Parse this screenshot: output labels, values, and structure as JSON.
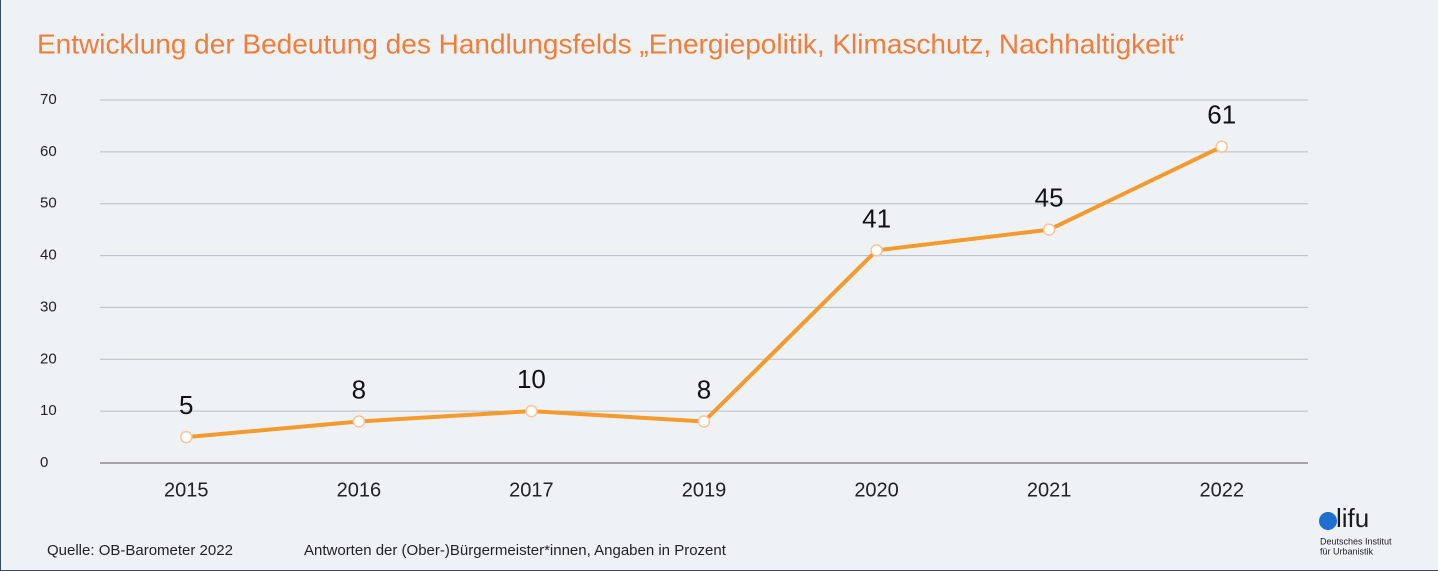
{
  "chart_data": {
    "type": "line",
    "title": "Entwicklung der Bedeutung des Handlungsfelds „Energiepolitik, Klimaschutz, Nachhaltigkeit“",
    "categories": [
      "2015",
      "2016",
      "2017",
      "2019",
      "2020",
      "2021",
      "2022"
    ],
    "series": [
      {
        "name": "Energiepolitik, Klimaschutz, Nachhaltigkeit",
        "color": "#f59a2e",
        "values": [
          5,
          8,
          10,
          8,
          41,
          45,
          61
        ]
      }
    ],
    "ylim": [
      0,
      70
    ],
    "yticks": [
      0,
      10,
      20,
      30,
      40,
      50,
      60,
      70
    ],
    "grid": true,
    "source": "Quelle: OB-Barometer 2022",
    "note": "Antworten der (Ober-)Bürgermeister*innen, Angaben in Prozent",
    "logo": {
      "text": "lifu",
      "line1": "Deutsches Institut",
      "line2": "für Urbanistik"
    }
  }
}
